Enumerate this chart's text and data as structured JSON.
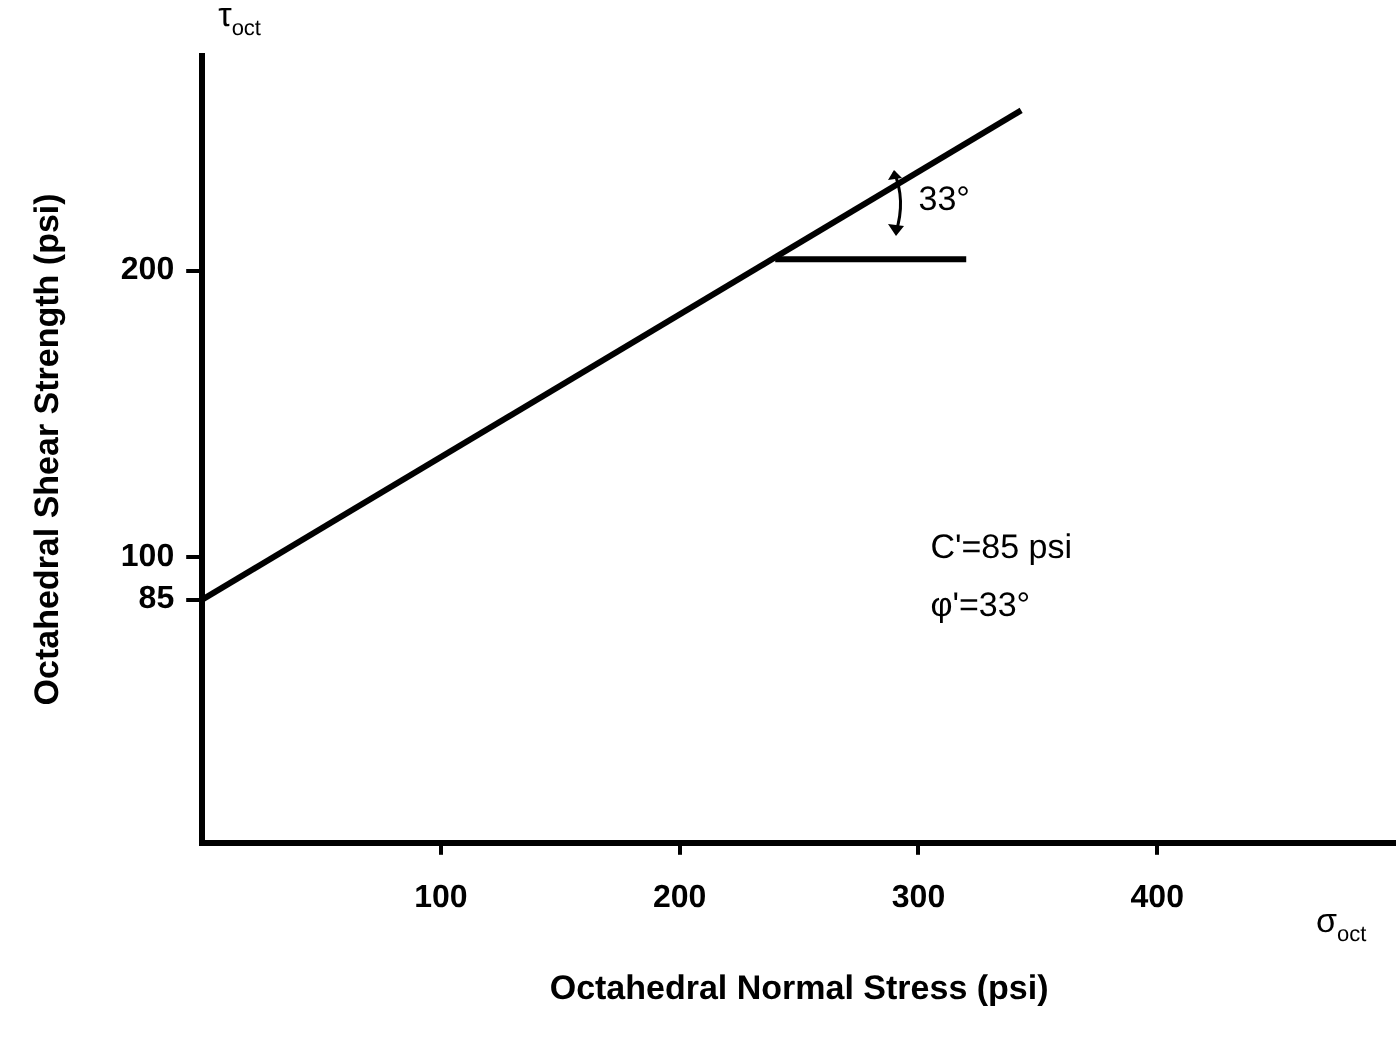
{
  "chart_data": {
    "type": "line",
    "xlabel": "Octahedral Normal Stress (psi)",
    "ylabel": "Octahedral Shear Strength (psi)",
    "x": [
      0,
      343
    ],
    "series": [
      {
        "color": "#000000",
        "values": [
          85,
          256
        ]
      },
      {
        "color": "#000000",
        "x": [
          240,
          320
        ],
        "values": [
          204,
          204
        ]
      }
    ],
    "xlim": [
      0,
      500
    ],
    "ylim": [
      0,
      275
    ],
    "xticks": [
      100,
      200,
      300,
      400
    ],
    "yticks": [
      85,
      100,
      200
    ],
    "grid": false,
    "legend": false,
    "marker": "none",
    "line_style": "solid",
    "annotations": [
      "τ$_{oct}$",
      "σ$_{oct}$",
      "33°",
      "C'=85 psi",
      "φ'=33°"
    ]
  }
}
